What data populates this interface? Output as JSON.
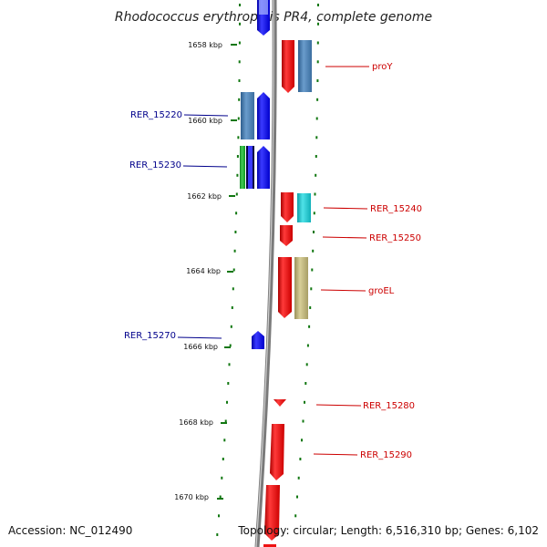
{
  "title": "Rhodococcus erythropolis PR4, complete genome",
  "accession": "Accession: NC_012490",
  "topology": "Topology: circular; Length: 6,516,310 bp; Genes: 6,102",
  "kbp_labels": [
    "1658 kbp",
    "1660 kbp",
    "1662 kbp",
    "1664 kbp",
    "1666 kbp",
    "1668 kbp",
    "1670 kbp"
  ],
  "left_genes": [
    "RER_15220",
    "RER_15230",
    "RER_15270"
  ],
  "right_genes": [
    "proY",
    "RER_15240",
    "RER_15250",
    "groEL",
    "RER_15280",
    "RER_15290"
  ],
  "colors": {
    "forward_strand": "#1010ee",
    "reverse_strand": "#ee1111",
    "steel_blue": "#4a7fb0",
    "cyan": "#20c0c8",
    "khaki": "#bcb27a",
    "green": "#22aa33",
    "backbone": "#888888",
    "tick_green": "#117711"
  }
}
